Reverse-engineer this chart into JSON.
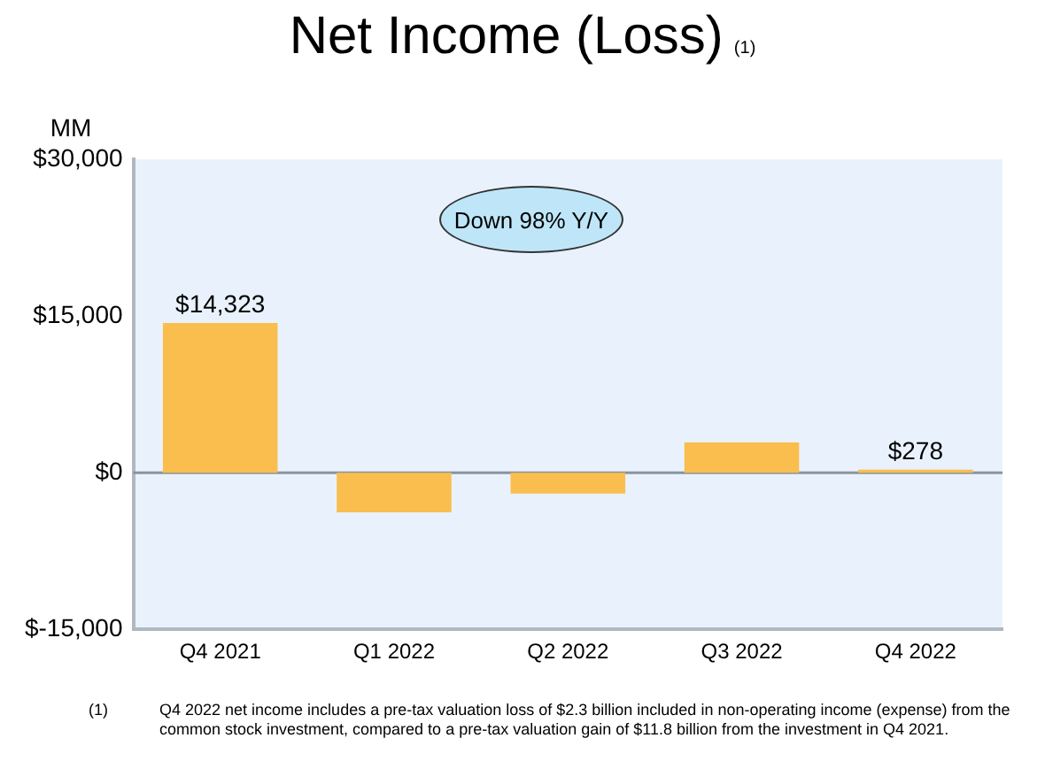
{
  "chart_data": {
    "type": "bar",
    "title": "Net Income (Loss)",
    "ylabel": "MM",
    "categories": [
      "Q4 2021",
      "Q1 2022",
      "Q2 2022",
      "Q3 2022",
      "Q4 2022"
    ],
    "values": [
      14323,
      -3800,
      -2000,
      2900,
      278
    ],
    "value_labels": [
      "$14,323",
      null,
      null,
      null,
      "$278"
    ],
    "color": "#f9be4e",
    "ylim": [
      -15000,
      30000
    ],
    "yticks": [
      {
        "value": -15000,
        "label": "$-15,000"
      },
      {
        "value": 0,
        "label": "$0"
      },
      {
        "value": 15000,
        "label": "$15,000"
      },
      {
        "value": 30000,
        "label": "$30,000"
      }
    ],
    "ref_lines": [
      {
        "axis": "y",
        "value": 0,
        "color": "#8a949e"
      }
    ],
    "legend": false,
    "annotations": [
      "(1)",
      "Down 98% Y/Y",
      "(1)",
      "Q4 2022 net income includes a pre-tax valuation loss of $2.3 billion included in non-operating income (expense) from the common stock investment, compared to a pre-tax valuation gain of $11.8 billion from the investment in Q4 2021."
    ]
  }
}
